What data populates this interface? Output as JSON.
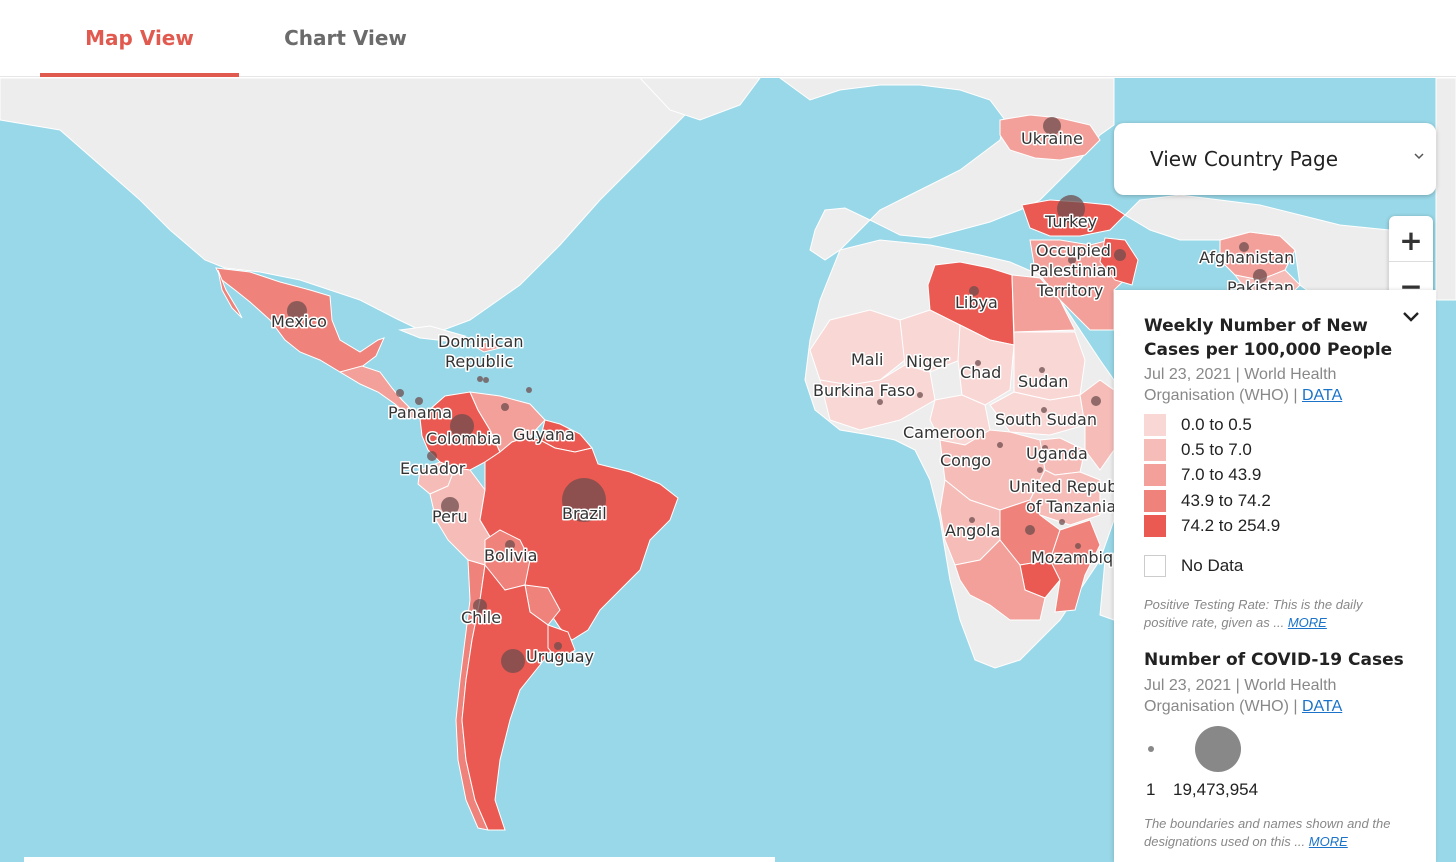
{
  "tabs": [
    {
      "label": "Map View",
      "active": true
    },
    {
      "label": "Chart View",
      "active": false
    }
  ],
  "country_select": {
    "label": "View Country Page"
  },
  "zoom": {
    "in_label": "+",
    "out_label": "−"
  },
  "legend": {
    "choropleth_title": "Weekly Number of New Cases per 100,000 People",
    "choropleth_source": "Jul 23, 2021 | World Health Organisation (WHO) |",
    "data_link": "DATA",
    "bins": [
      {
        "label": "0.0 to 0.5",
        "color": "#f8d7d5"
      },
      {
        "label": "0.5 to 7.0",
        "color": "#f6bcb8"
      },
      {
        "label": "7.0 to 43.9",
        "color": "#f3a09a"
      },
      {
        "label": "43.9 to 74.2",
        "color": "#ef827b"
      },
      {
        "label": "74.2 to 254.9",
        "color": "#ea5a52"
      }
    ],
    "no_data_label": "No Data",
    "testing_note": "Positive Testing Rate: This is the daily positive rate, given as ...",
    "more_link": "MORE",
    "bubble_title": "Number of COVID-19 Cases",
    "bubble_source": "Jul 23, 2021 | World Health Organisation (WHO) |",
    "bubble_min": "1",
    "bubble_max": "19,473,954",
    "boundaries_note": "The boundaries and names shown and the designations used on this ..."
  },
  "map": {
    "ocean_color": "#99d8e8",
    "land_color": "#ededed",
    "bubble_color": "#6d4d4d",
    "countries": [
      {
        "name": "Mexico",
        "bin": 3
      },
      {
        "name": "Dominican Republic",
        "bin": 2
      },
      {
        "name": "Panama",
        "bin": 3
      },
      {
        "name": "Colombia",
        "bin": 4
      },
      {
        "name": "Guyana",
        "bin": 4
      },
      {
        "name": "Ecuador",
        "bin": 2
      },
      {
        "name": "Peru",
        "bin": 2
      },
      {
        "name": "Brazil",
        "bin": 4
      },
      {
        "name": "Bolivia",
        "bin": 3
      },
      {
        "name": "Chile",
        "bin": 3
      },
      {
        "name": "Uruguay",
        "bin": 4
      },
      {
        "name": "Ukraine",
        "bin": 2
      },
      {
        "name": "Turkey",
        "bin": 4
      },
      {
        "name": "Occupied Palestinian Territory",
        "bin": 3
      },
      {
        "name": "Afghanistan",
        "bin": 2
      },
      {
        "name": "Pakistan",
        "bin": 1
      },
      {
        "name": "Libya",
        "bin": 4
      },
      {
        "name": "Mali",
        "bin": 0
      },
      {
        "name": "Niger",
        "bin": 0
      },
      {
        "name": "Burkina Faso",
        "bin": 0
      },
      {
        "name": "Chad",
        "bin": 0
      },
      {
        "name": "Sudan",
        "bin": 0
      },
      {
        "name": "South Sudan",
        "bin": 0
      },
      {
        "name": "Cameroon",
        "bin": 0
      },
      {
        "name": "Congo",
        "bin": 1
      },
      {
        "name": "Uganda",
        "bin": 1
      },
      {
        "name": "United Republic of Tanzania",
        "bin": 1
      },
      {
        "name": "Angola",
        "bin": 1
      },
      {
        "name": "Mozambique",
        "bin": 3
      }
    ]
  }
}
